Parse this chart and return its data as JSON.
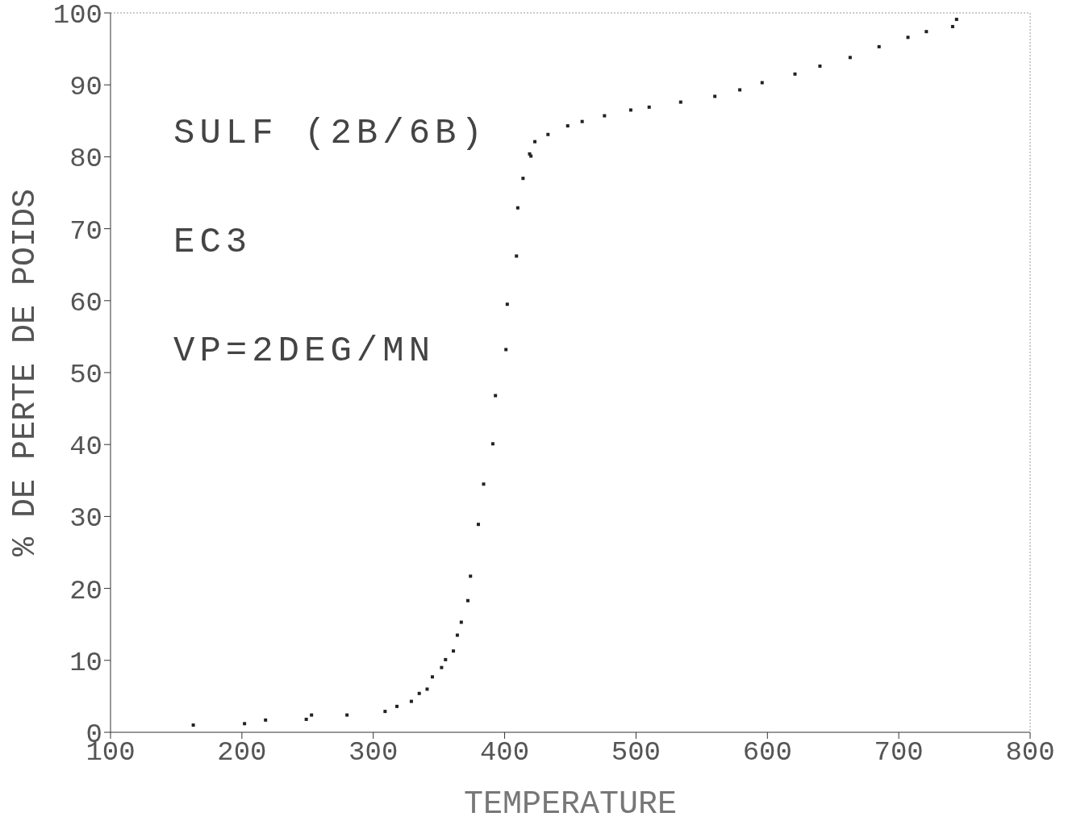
{
  "chart_data": {
    "type": "scatter",
    "ylabel": "% DE PERTE DE POIDS",
    "xlabel": "TEMPERATURE",
    "annotations": [
      "SULF (2B/6B)",
      "EC3",
      "VP=2DEG/MN"
    ],
    "xlim": [
      100,
      800
    ],
    "xticks": [
      100,
      200,
      300,
      400,
      500,
      600,
      700,
      800
    ],
    "ylim": [
      0,
      100
    ],
    "yticks": [
      0,
      10,
      20,
      30,
      40,
      50,
      60,
      70,
      80,
      90,
      100
    ],
    "grid": false,
    "marker": "square",
    "series": [
      {
        "color": "#222222",
        "x": [
          163,
          202,
          218,
          249,
          253,
          280,
          309,
          318,
          329,
          335,
          341,
          345,
          352,
          355,
          361,
          364,
          367,
          372,
          374,
          380,
          384,
          391,
          393,
          401,
          402,
          409,
          410,
          414,
          419,
          420,
          423,
          433,
          448,
          459,
          476,
          496,
          510,
          534,
          560,
          579,
          596,
          621,
          640,
          663,
          685,
          707,
          721,
          741,
          744
        ],
        "values": [
          1.0,
          1.2,
          1.7,
          1.8,
          2.4,
          2.4,
          2.9,
          3.6,
          4.3,
          5.4,
          6.0,
          7.7,
          9.0,
          10.1,
          11.3,
          13.5,
          15.3,
          18.3,
          21.7,
          28.9,
          34.5,
          40.1,
          46.8,
          53.2,
          59.5,
          66.2,
          72.9,
          77.0,
          80.4,
          80.1,
          82.1,
          83.1,
          84.3,
          84.9,
          85.7,
          86.5,
          86.9,
          87.6,
          88.4,
          89.3,
          90.3,
          91.5,
          92.6,
          93.8,
          95.3,
          96.6,
          97.4,
          98.1,
          99.1
        ]
      }
    ]
  }
}
